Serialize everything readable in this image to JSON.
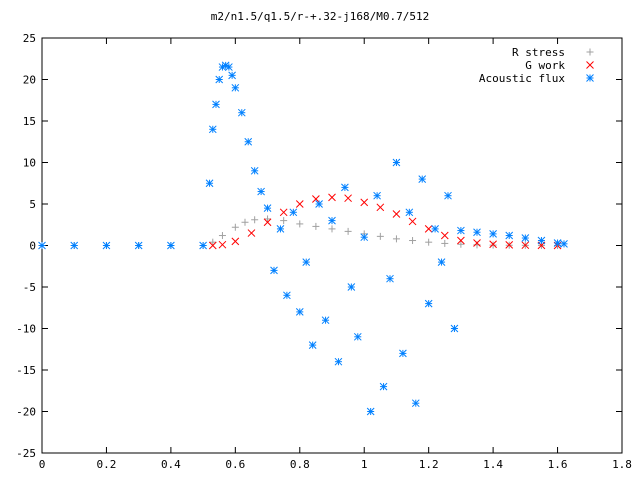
{
  "chart_data": {
    "type": "scatter",
    "title": "m2/n1.5/q1.5/r-+.32-j168/M0.7/512",
    "xlabel": "",
    "ylabel": "",
    "xlim": [
      0,
      1.8
    ],
    "ylim": [
      -25,
      25
    ],
    "x_ticks": [
      "0",
      "0.2",
      "0.4",
      "0.6",
      "0.8",
      "1",
      "1.2",
      "1.4",
      "1.6",
      "1.8"
    ],
    "y_ticks": [
      "25",
      "20",
      "15",
      "10",
      "5",
      "0",
      "-5",
      "-10",
      "-15",
      "-20",
      "-25"
    ],
    "grid": false,
    "legend_position": "top-right",
    "series": [
      {
        "name": "R stress",
        "marker": "plus",
        "color": "#a0a0a0",
        "x": [
          0,
          0.1,
          0.2,
          0.3,
          0.4,
          0.5,
          0.53,
          0.56,
          0.6,
          0.63,
          0.66,
          0.7,
          0.75,
          0.8,
          0.85,
          0.9,
          0.95,
          1.0,
          1.05,
          1.1,
          1.15,
          1.2,
          1.25,
          1.3,
          1.35,
          1.4,
          1.45,
          1.5,
          1.55,
          1.6
        ],
        "y": [
          0,
          0,
          0,
          0,
          0,
          0,
          0.4,
          1.2,
          2.2,
          2.8,
          3.1,
          3.2,
          3.0,
          2.6,
          2.3,
          2.0,
          1.7,
          1.4,
          1.1,
          0.8,
          0.6,
          0.4,
          0.25,
          0.15,
          0.08,
          0.05,
          0.03,
          0.02,
          0.01,
          0
        ]
      },
      {
        "name": "G work",
        "marker": "cross",
        "color": "#ff0000",
        "x": [
          0.53,
          0.56,
          0.6,
          0.65,
          0.7,
          0.75,
          0.8,
          0.85,
          0.9,
          0.95,
          1.0,
          1.05,
          1.1,
          1.15,
          1.2,
          1.25,
          1.3,
          1.35,
          1.4,
          1.45,
          1.5,
          1.55,
          1.6
        ],
        "y": [
          0,
          0.1,
          0.5,
          1.5,
          2.8,
          4.0,
          5.0,
          5.6,
          5.8,
          5.7,
          5.2,
          4.6,
          3.8,
          2.9,
          2.0,
          1.2,
          0.6,
          0.3,
          0.15,
          0.08,
          0.04,
          0.02,
          0
        ]
      },
      {
        "name": "Acoustic flux",
        "marker": "star",
        "color": "#0080ff",
        "x": [
          0,
          0.1,
          0.2,
          0.3,
          0.4,
          0.5,
          0.52,
          0.53,
          0.54,
          0.55,
          0.56,
          0.57,
          0.58,
          0.59,
          0.6,
          0.62,
          0.64,
          0.66,
          0.68,
          0.7,
          0.72,
          0.74,
          0.76,
          0.78,
          0.8,
          0.82,
          0.84,
          0.86,
          0.88,
          0.9,
          0.92,
          0.94,
          0.96,
          0.98,
          1.0,
          1.02,
          1.04,
          1.06,
          1.08,
          1.1,
          1.12,
          1.14,
          1.16,
          1.18,
          1.2,
          1.22,
          1.24,
          1.26,
          1.28,
          1.3,
          1.35,
          1.4,
          1.45,
          1.5,
          1.55,
          1.6,
          1.62
        ],
        "y": [
          0,
          0,
          0,
          0,
          0,
          0,
          7.5,
          14,
          17,
          20,
          21.5,
          21.7,
          21.5,
          20.5,
          19,
          16,
          12.5,
          9,
          6.5,
          4.5,
          -3,
          2,
          -6,
          4,
          -8,
          -2,
          -12,
          5,
          -9,
          3,
          -14,
          7,
          -5,
          -11,
          1,
          -20,
          6,
          -17,
          -4,
          10,
          -13,
          4,
          -19,
          8,
          -7,
          2,
          -2,
          6,
          -10,
          1.8,
          1.6,
          1.4,
          1.2,
          0.9,
          0.6,
          0.3,
          0.2
        ]
      }
    ]
  }
}
